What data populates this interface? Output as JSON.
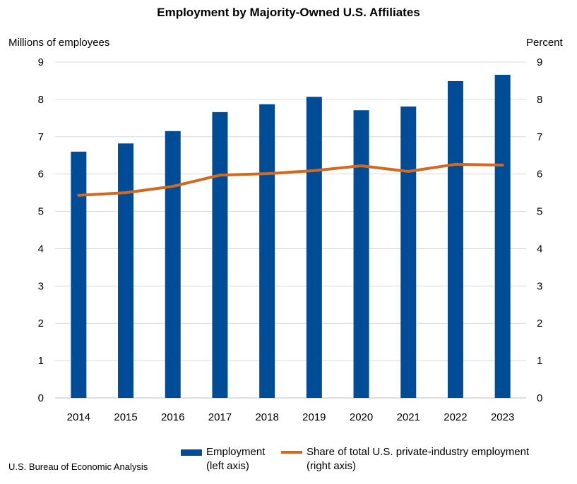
{
  "chart_data": {
    "type": "bar+line",
    "title": "Employment by Majority-Owned U.S. Affiliates",
    "ylabel_left": "Millions of employees",
    "ylabel_right": "Percent",
    "ylim_left": [
      0,
      9
    ],
    "ylim_right": [
      0,
      9
    ],
    "yticks": [
      0,
      1,
      2,
      3,
      4,
      5,
      6,
      7,
      8,
      9
    ],
    "grid": true,
    "legend_position": "bottom",
    "categories": [
      "2014",
      "2015",
      "2016",
      "2017",
      "2018",
      "2019",
      "2020",
      "2021",
      "2022",
      "2023"
    ],
    "series": [
      {
        "name": "Employment",
        "name_line2": "(left axis)",
        "type": "bar",
        "axis": "left",
        "color": "#004C97",
        "values": [
          6.6,
          6.82,
          7.15,
          7.66,
          7.87,
          8.07,
          7.71,
          7.81,
          8.49,
          8.66
        ]
      },
      {
        "name": "Share of total U.S. private-industry employment",
        "name_line2": "(right axis)",
        "type": "line",
        "axis": "right",
        "color": "#D2691E",
        "values": [
          5.43,
          5.5,
          5.67,
          5.97,
          6.01,
          6.09,
          6.22,
          6.07,
          6.26,
          6.24
        ]
      }
    ]
  },
  "source": "U.S. Bureau of Economic Analysis"
}
